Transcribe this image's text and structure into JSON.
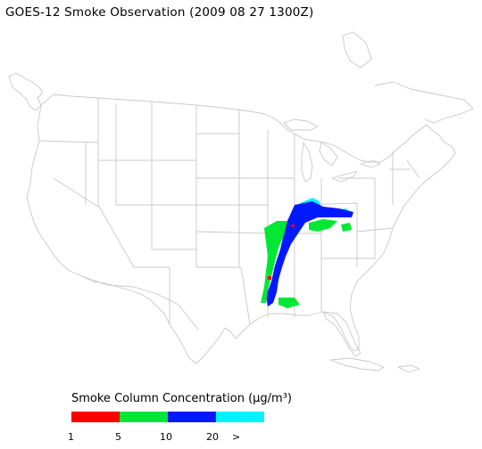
{
  "title": "GOES-12 Smoke Observation (2009 08 27  1300Z)",
  "legend": {
    "title": "Smoke Column Concentration (μg/m³)",
    "bins": [
      {
        "color": "#ff0000"
      },
      {
        "color": "#00e833"
      },
      {
        "color": "#0019ff"
      },
      {
        "color": "#00f4ff"
      }
    ],
    "ticks": [
      "1",
      "5",
      "10",
      "20",
      ">"
    ]
  },
  "colors": {
    "boundaries": "#c8c8c8",
    "background": "#ffffff"
  }
}
